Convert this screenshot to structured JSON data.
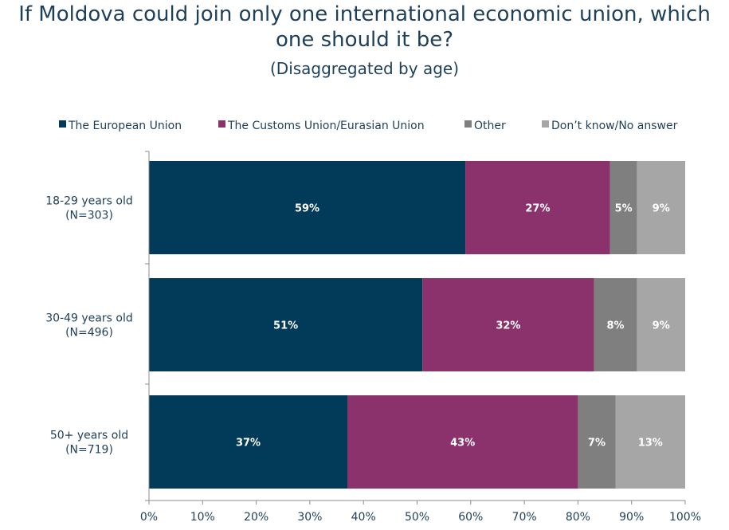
{
  "chart_data": {
    "type": "bar",
    "orientation": "horizontal",
    "stacked": true,
    "title": "If Moldova could join only one international economic union, which one should it be?",
    "title_lines": [
      "If Moldova could join only one international economic union, which",
      "one should it be?"
    ],
    "subtitle": "(Disaggregated by age)",
    "categories": [
      [
        "18-29 years old",
        "(N=303)"
      ],
      [
        "30-49 years old",
        "(N=496)"
      ],
      [
        "50+ years old",
        "(N=719)"
      ]
    ],
    "series": [
      {
        "name": "The European Union",
        "color": "#023a5a",
        "values": [
          59,
          51,
          37
        ],
        "labels": [
          "59%",
          "51%",
          "37%"
        ]
      },
      {
        "name": "The Customs Union/Eurasian Union",
        "color": "#8b316b",
        "values": [
          27,
          32,
          43
        ],
        "labels": [
          "27%",
          "32%",
          "43%"
        ]
      },
      {
        "name": "Other",
        "color": "#7f7f7f",
        "values": [
          5,
          8,
          7
        ],
        "labels": [
          "5%",
          "8%",
          "7%"
        ]
      },
      {
        "name": "Don’t know/No answer",
        "color": "#a6a6a6",
        "values": [
          9,
          9,
          13
        ],
        "labels": [
          "9%",
          "9%",
          "13%"
        ]
      }
    ],
    "xlim": [
      0,
      100
    ],
    "xticks": [
      "0%",
      "10%",
      "20%",
      "30%",
      "40%",
      "50%",
      "60%",
      "70%",
      "80%",
      "90%",
      "100%"
    ],
    "legend_position": "top",
    "grid": false
  }
}
